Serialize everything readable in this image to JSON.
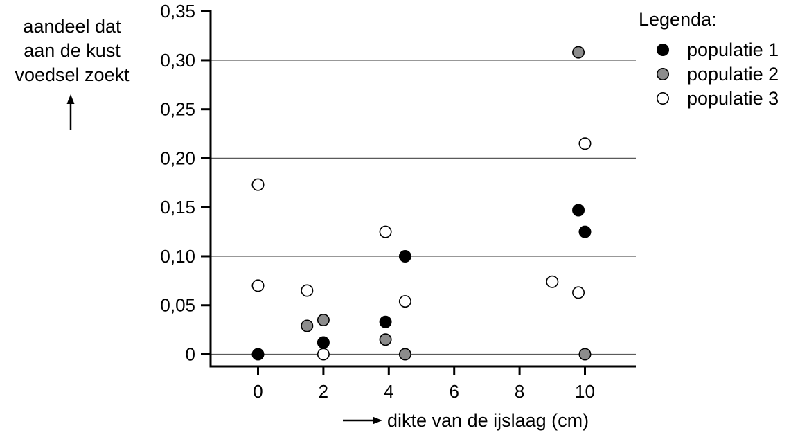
{
  "chart_data": {
    "type": "scatter",
    "xlabel": "dikte van de ijslaag (cm)",
    "ylabel_lines": [
      "aandeel dat",
      "aan de kust",
      "voedsel zoekt"
    ],
    "xlim": [
      -1.4,
      11.5
    ],
    "ylim": [
      -0.012,
      0.35
    ],
    "x_ticks": [
      0,
      2,
      4,
      6,
      8,
      10
    ],
    "x_tick_labels": [
      "0",
      "2",
      "4",
      "6",
      "8",
      "10"
    ],
    "y_ticks": [
      0,
      0.05,
      0.1,
      0.15,
      0.2,
      0.25,
      0.3,
      0.35
    ],
    "y_tick_labels": [
      "0",
      "0,05",
      "0,10",
      "0,15",
      "0,20",
      "0,25",
      "0,30",
      "0,35"
    ],
    "gridlines_y": [
      0,
      0.1,
      0.2,
      0.3
    ],
    "legend_title": "Legenda:",
    "legend_position": "top-right",
    "series": [
      {
        "name": "populatie 1",
        "color": "#000000",
        "points": [
          {
            "x": 0,
            "y": 0
          },
          {
            "x": 2,
            "y": 0.012
          },
          {
            "x": 3.9,
            "y": 0.033
          },
          {
            "x": 4.5,
            "y": 0.1
          },
          {
            "x": 9.8,
            "y": 0.147
          },
          {
            "x": 10,
            "y": 0.125
          }
        ]
      },
      {
        "name": "populatie 2",
        "color": "#8c8c8c",
        "points": [
          {
            "x": 1.5,
            "y": 0.029
          },
          {
            "x": 2,
            "y": 0.035
          },
          {
            "x": 3.9,
            "y": 0.015
          },
          {
            "x": 4.5,
            "y": 0
          },
          {
            "x": 9.8,
            "y": 0.308
          },
          {
            "x": 10,
            "y": 0
          }
        ]
      },
      {
        "name": "populatie 3",
        "color": "#ffffff",
        "points": [
          {
            "x": 0,
            "y": 0.173
          },
          {
            "x": 0,
            "y": 0.07
          },
          {
            "x": 1.5,
            "y": 0.065
          },
          {
            "x": 2,
            "y": 0
          },
          {
            "x": 3.9,
            "y": 0.125
          },
          {
            "x": 4.5,
            "y": 0.054
          },
          {
            "x": 9,
            "y": 0.074
          },
          {
            "x": 9.8,
            "y": 0.063
          },
          {
            "x": 10,
            "y": 0.215
          }
        ]
      }
    ]
  }
}
